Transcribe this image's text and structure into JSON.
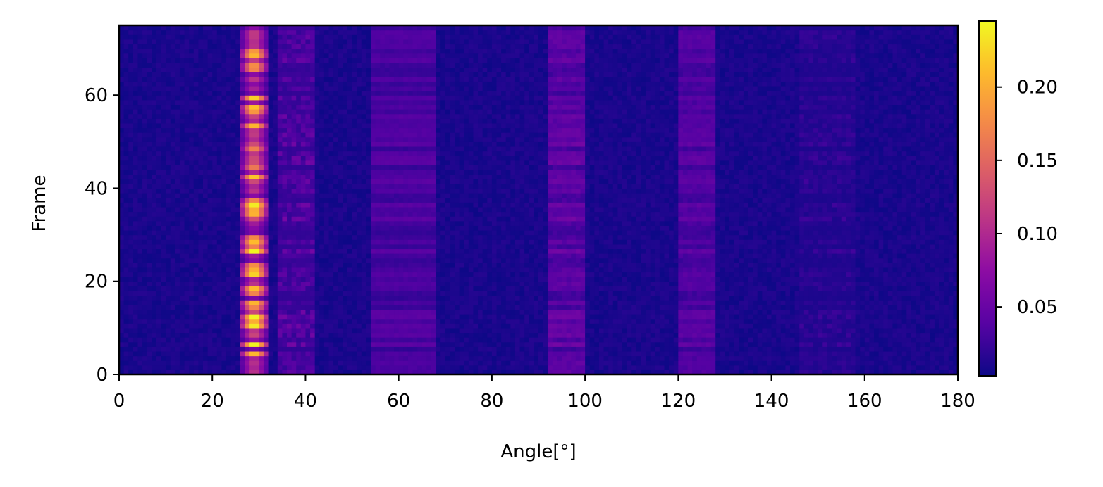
{
  "chart_data": {
    "type": "heatmap",
    "title": "",
    "xlabel": "Angle[°]",
    "ylabel": "Frame",
    "xlim": [
      0,
      180
    ],
    "ylim": [
      0,
      75
    ],
    "x_ticks": [
      0,
      20,
      40,
      60,
      80,
      100,
      120,
      140,
      160,
      180
    ],
    "y_ticks": [
      0,
      20,
      40,
      60
    ],
    "colormap": "plasma",
    "colorbar": {
      "vmin": 0.003,
      "vmax": 0.245,
      "ticks": [
        0.05,
        0.1,
        0.15,
        0.2
      ],
      "tick_labels": [
        "0.05",
        "0.10",
        "0.15",
        "0.20"
      ]
    },
    "angle_bins": 180,
    "frame_bins": 75,
    "value_ranges": {
      "background": [
        0.003,
        0.015
      ],
      "band_26_32_deg": [
        0.05,
        0.245
      ],
      "band_34_42_deg": [
        0.02,
        0.06
      ],
      "band_54_68_deg": [
        0.02,
        0.05
      ],
      "band_92_100_deg": [
        0.02,
        0.06
      ],
      "band_120_128_deg": [
        0.02,
        0.05
      ],
      "band_146_158_deg": [
        0.01,
        0.03
      ]
    },
    "bright_frames_28deg": [
      4,
      6,
      10,
      11,
      12,
      14,
      15,
      17,
      18,
      21,
      22,
      23,
      26,
      27,
      28,
      29,
      34,
      35,
      36,
      37,
      42,
      44,
      48,
      53,
      56,
      57,
      59,
      65,
      66,
      68,
      69
    ],
    "grid": false,
    "legend": "none"
  }
}
